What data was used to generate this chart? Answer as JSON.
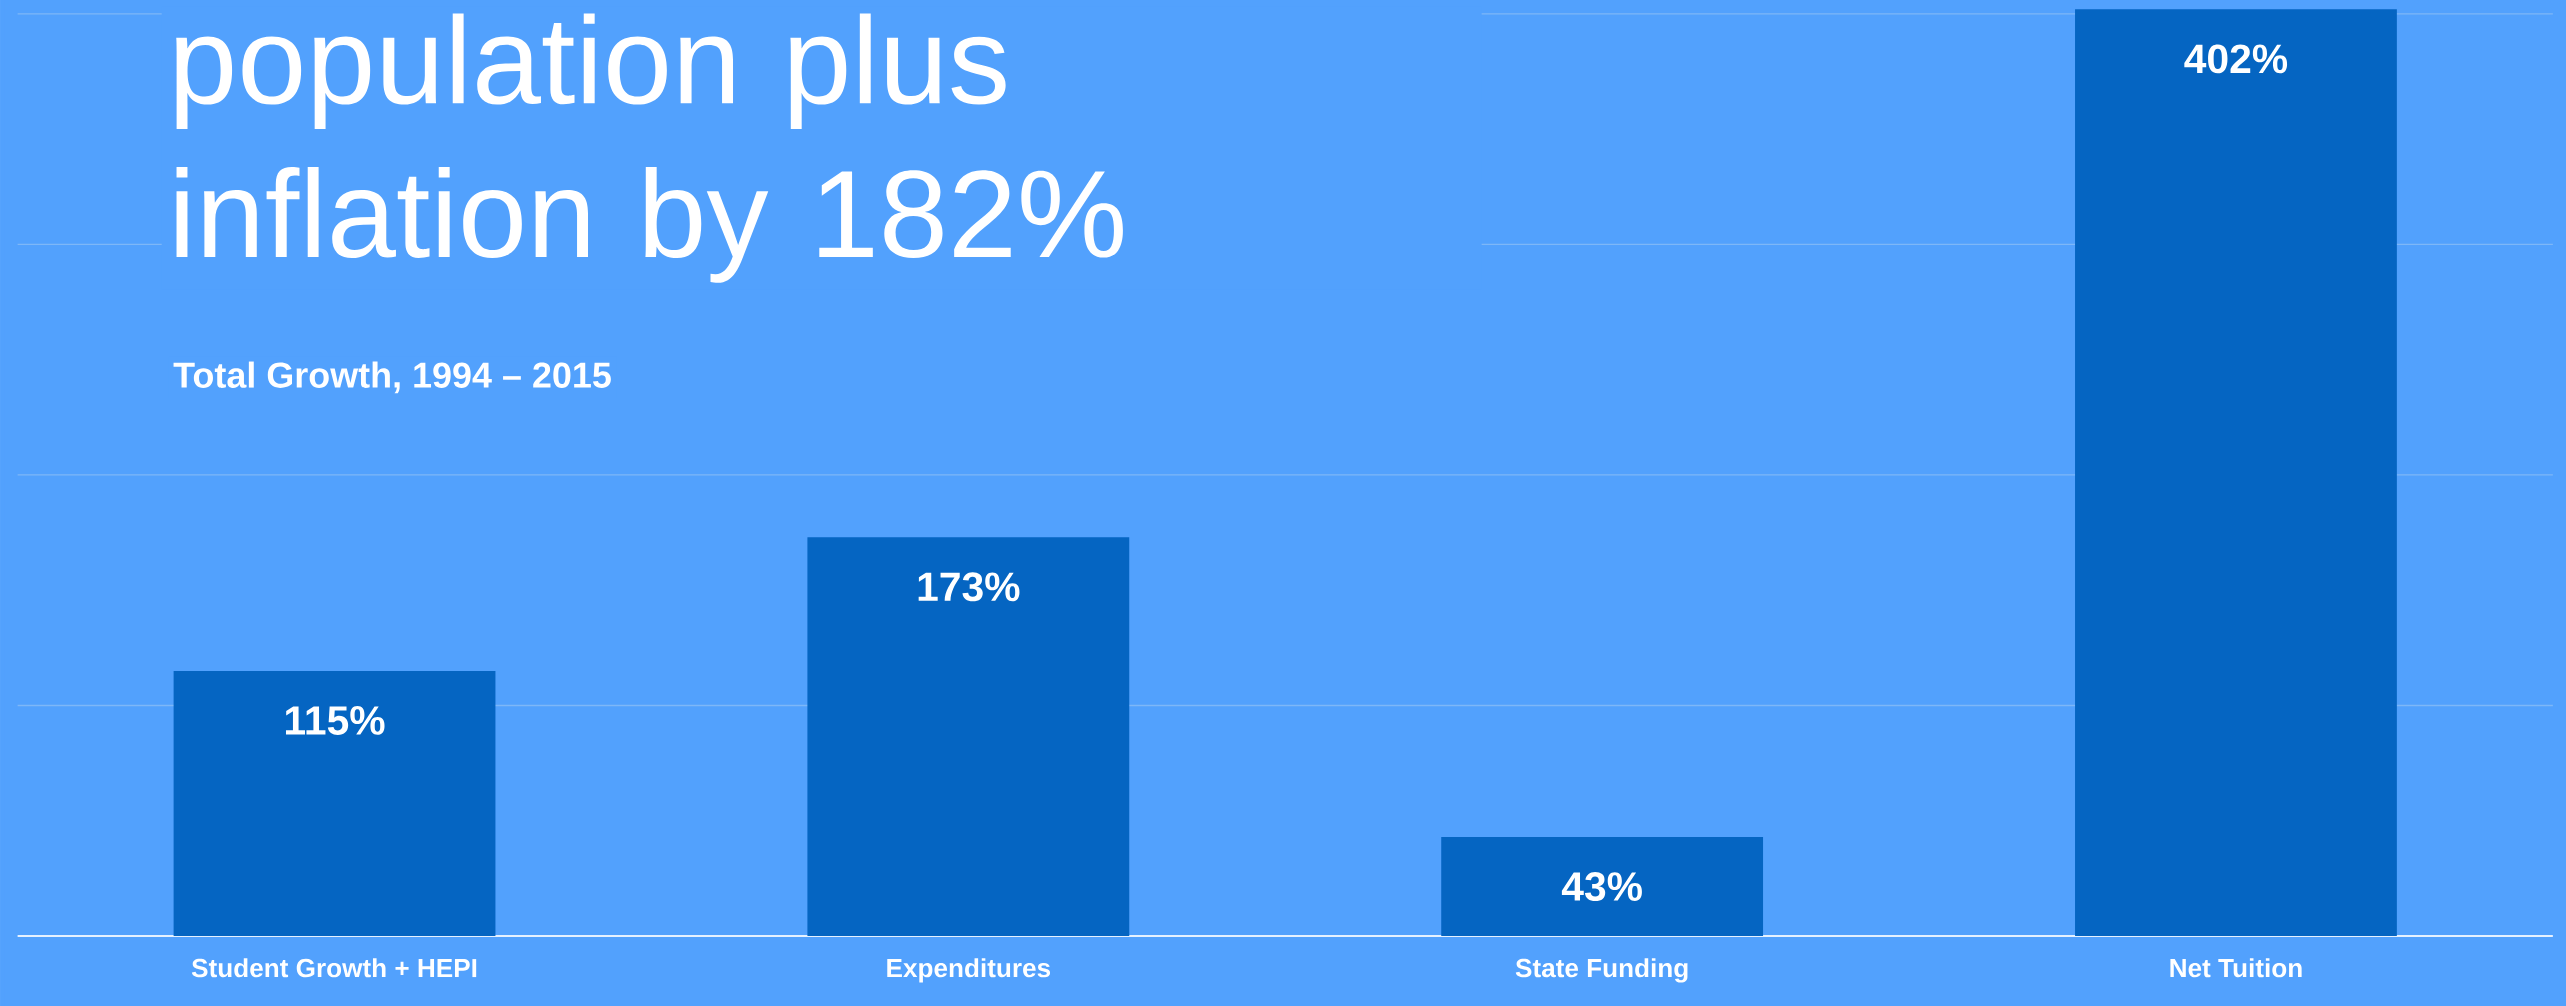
{
  "chart_data": {
    "type": "bar",
    "title": "population plus inflation by 182%",
    "subtitle": "Total Growth, 1994 – 2015",
    "categories": [
      "Student Growth + HEPI",
      "Expenditures",
      "State Funding",
      "Net Tuition"
    ],
    "values": [
      115,
      173,
      43,
      402
    ],
    "value_labels": [
      "115%",
      "173%",
      "43%",
      "402%"
    ],
    "color": "#0565c2",
    "ylim": [
      0,
      406
    ],
    "yticks": [
      {
        "value": 100,
        "label": null
      },
      {
        "value": 200,
        "label": null
      },
      {
        "value": 300,
        "label": null
      },
      {
        "value": 400,
        "label": null
      }
    ],
    "grid": "y",
    "tick_labels": "x"
  }
}
